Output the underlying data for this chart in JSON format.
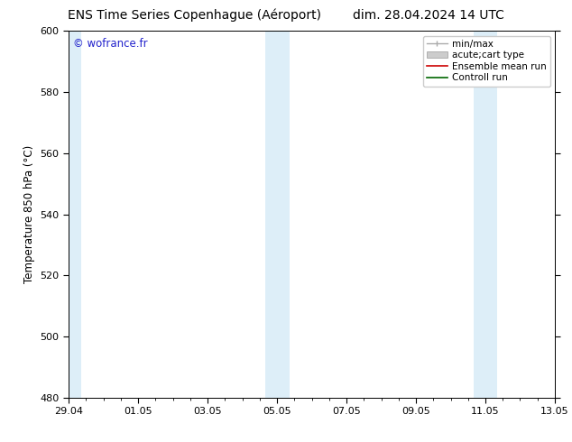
{
  "title_left": "ENS Time Series Copenhague (Aéroport)",
  "title_right": "dim. 28.04.2024 14 UTC",
  "ylabel": "Temperature 850 hPa (°C)",
  "ylim": [
    480,
    600
  ],
  "yticks": [
    480,
    500,
    520,
    540,
    560,
    580,
    600
  ],
  "xtick_labels": [
    "29.04",
    "01.05",
    "03.05",
    "05.05",
    "07.05",
    "09.05",
    "11.05",
    "13.05"
  ],
  "x_positions": [
    0,
    2,
    4,
    6,
    8,
    10,
    12,
    14
  ],
  "xlim": [
    0,
    14
  ],
  "shaded_bands": [
    {
      "x_start": -0.1,
      "x_end": 0.35,
      "color": "#ddeef8"
    },
    {
      "x_start": 5.65,
      "x_end": 6.35,
      "color": "#ddeef8"
    },
    {
      "x_start": 11.65,
      "x_end": 12.35,
      "color": "#ddeef8"
    }
  ],
  "legend_entries": [
    {
      "label": "min/max",
      "color": "#aaaaaa",
      "lw": 1.0
    },
    {
      "label": "acute;cart type",
      "color": "#cccccc",
      "lw": 6.0
    },
    {
      "label": "Ensemble mean run",
      "color": "#cc0000",
      "lw": 1.2
    },
    {
      "label": "Controll run",
      "color": "#006600",
      "lw": 1.2
    }
  ],
  "watermark_text": "© wofrance.fr",
  "watermark_color": "#2222cc",
  "bg_color": "#ffffff",
  "spine_color": "#000000",
  "title_fontsize": 10,
  "label_fontsize": 8.5,
  "tick_fontsize": 8,
  "legend_fontsize": 7.5
}
